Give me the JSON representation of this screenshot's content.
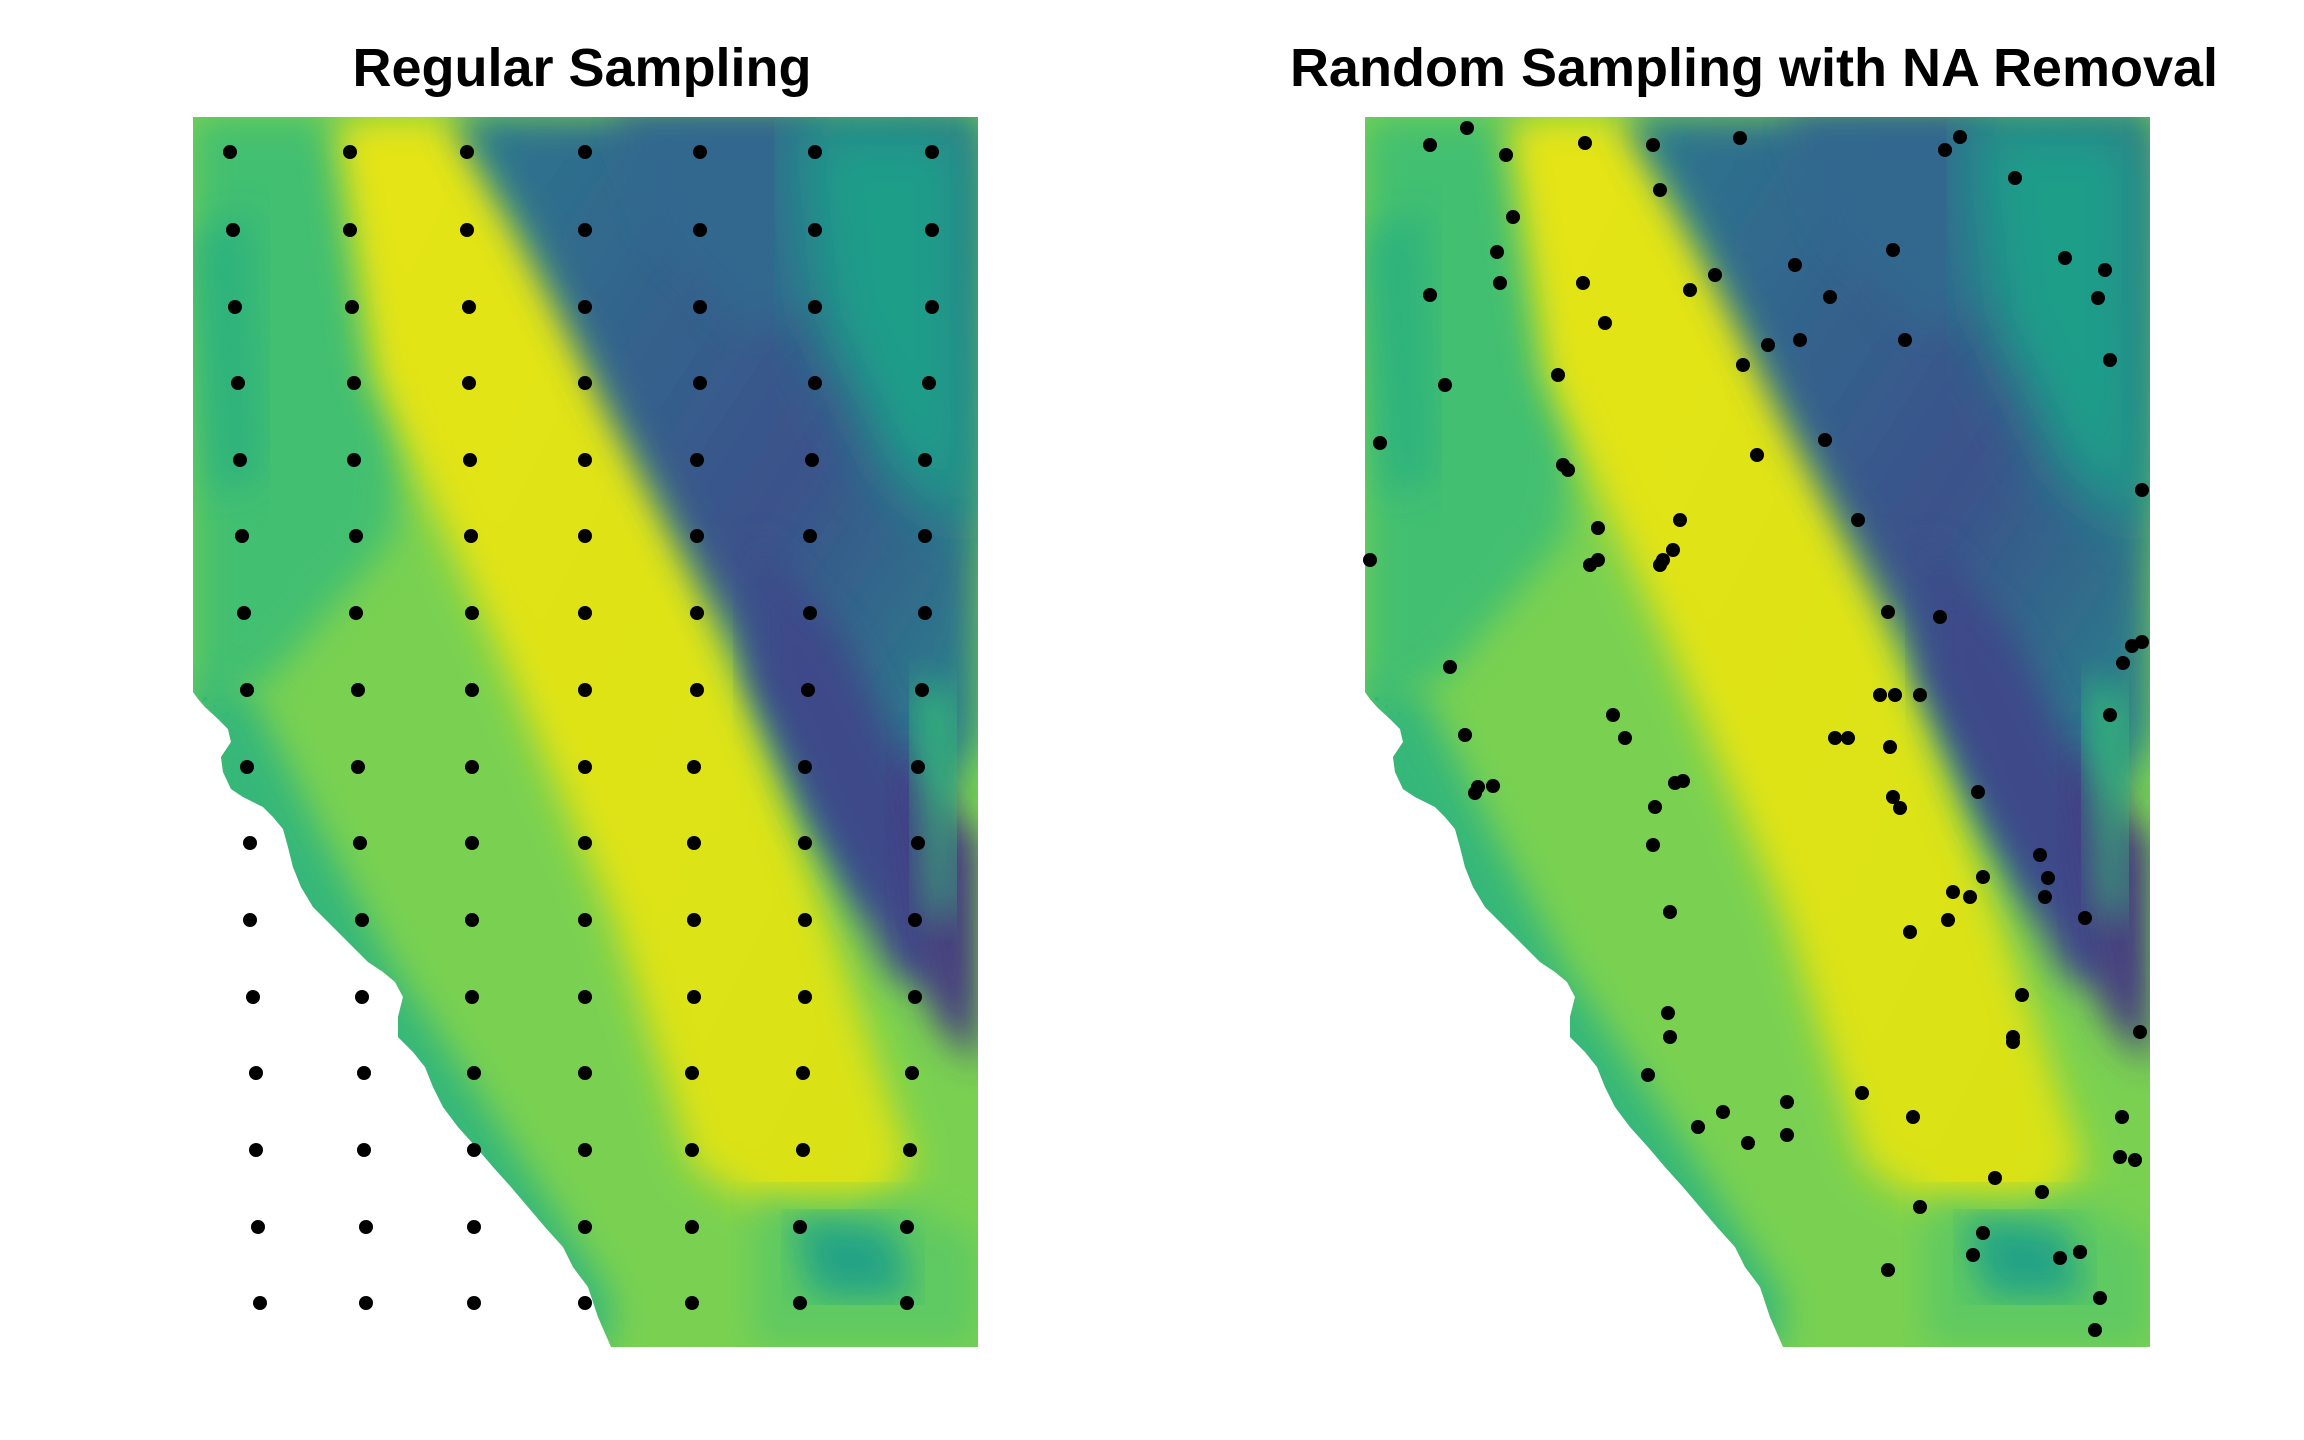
{
  "panels": [
    {
      "title": "Regular Sampling",
      "points": [
        [
          230,
          152
        ],
        [
          350,
          152
        ],
        [
          467,
          152
        ],
        [
          585,
          152
        ],
        [
          700,
          152
        ],
        [
          815,
          152
        ],
        [
          932,
          152
        ],
        [
          233,
          230
        ],
        [
          350,
          230
        ],
        [
          467,
          230
        ],
        [
          585,
          230
        ],
        [
          700,
          230
        ],
        [
          815,
          230
        ],
        [
          932,
          230
        ],
        [
          235,
          307
        ],
        [
          352,
          307
        ],
        [
          469,
          307
        ],
        [
          585,
          307
        ],
        [
          700,
          307
        ],
        [
          815,
          307
        ],
        [
          932,
          307
        ],
        [
          238,
          383
        ],
        [
          354,
          383
        ],
        [
          469,
          383
        ],
        [
          585,
          383
        ],
        [
          700,
          383
        ],
        [
          815,
          383
        ],
        [
          929,
          383
        ],
        [
          240,
          460
        ],
        [
          354,
          460
        ],
        [
          470,
          460
        ],
        [
          585,
          460
        ],
        [
          697,
          460
        ],
        [
          812,
          460
        ],
        [
          925,
          460
        ],
        [
          242,
          536
        ],
        [
          356,
          536
        ],
        [
          471,
          536
        ],
        [
          585,
          536
        ],
        [
          697,
          536
        ],
        [
          810,
          536
        ],
        [
          925,
          536
        ],
        [
          244,
          613
        ],
        [
          356,
          613
        ],
        [
          472,
          613
        ],
        [
          585,
          613
        ],
        [
          697,
          613
        ],
        [
          810,
          613
        ],
        [
          925,
          613
        ],
        [
          247,
          690
        ],
        [
          358,
          690
        ],
        [
          472,
          690
        ],
        [
          585,
          690
        ],
        [
          697,
          690
        ],
        [
          808,
          690
        ],
        [
          922,
          690
        ],
        [
          247,
          767
        ],
        [
          358,
          767
        ],
        [
          472,
          767
        ],
        [
          585,
          767
        ],
        [
          694,
          767
        ],
        [
          805,
          767
        ],
        [
          918,
          767
        ],
        [
          250,
          843
        ],
        [
          360,
          843
        ],
        [
          472,
          843
        ],
        [
          585,
          843
        ],
        [
          694,
          843
        ],
        [
          805,
          843
        ],
        [
          918,
          843
        ],
        [
          250,
          920
        ],
        [
          362,
          920
        ],
        [
          472,
          920
        ],
        [
          585,
          920
        ],
        [
          694,
          920
        ],
        [
          805,
          920
        ],
        [
          915,
          920
        ],
        [
          253,
          997
        ],
        [
          362,
          997
        ],
        [
          472,
          997
        ],
        [
          585,
          997
        ],
        [
          694,
          997
        ],
        [
          805,
          997
        ],
        [
          915,
          997
        ],
        [
          256,
          1073
        ],
        [
          364,
          1073
        ],
        [
          474,
          1073
        ],
        [
          585,
          1073
        ],
        [
          692,
          1073
        ],
        [
          803,
          1073
        ],
        [
          912,
          1073
        ],
        [
          256,
          1150
        ],
        [
          364,
          1150
        ],
        [
          474,
          1150
        ],
        [
          585,
          1150
        ],
        [
          692,
          1150
        ],
        [
          803,
          1150
        ],
        [
          910,
          1150
        ],
        [
          258,
          1227
        ],
        [
          366,
          1227
        ],
        [
          474,
          1227
        ],
        [
          585,
          1227
        ],
        [
          692,
          1227
        ],
        [
          800,
          1227
        ],
        [
          907,
          1227
        ],
        [
          260,
          1303
        ],
        [
          366,
          1303
        ],
        [
          474,
          1303
        ],
        [
          585,
          1303
        ],
        [
          692,
          1303
        ],
        [
          800,
          1303
        ],
        [
          907,
          1303
        ]
      ]
    },
    {
      "title": "Random Sampling with NA Removal",
      "points": [
        [
          1430,
          145
        ],
        [
          1467,
          128
        ],
        [
          1506,
          155
        ],
        [
          1585,
          143
        ],
        [
          1653,
          145
        ],
        [
          1740,
          138
        ],
        [
          1945,
          150
        ],
        [
          1960,
          137
        ],
        [
          1660,
          190
        ],
        [
          2015,
          178
        ],
        [
          1513,
          217
        ],
        [
          1497,
          252
        ],
        [
          1500,
          283
        ],
        [
          1583,
          283
        ],
        [
          1605,
          323
        ],
        [
          1690,
          290
        ],
        [
          1715,
          275
        ],
        [
          1795,
          265
        ],
        [
          1830,
          297
        ],
        [
          1893,
          250
        ],
        [
          1905,
          340
        ],
        [
          2065,
          258
        ],
        [
          2105,
          270
        ],
        [
          2098,
          298
        ],
        [
          1430,
          295
        ],
        [
          1445,
          385
        ],
        [
          1380,
          443
        ],
        [
          1558,
          375
        ],
        [
          1563,
          465
        ],
        [
          1568,
          470
        ],
        [
          1598,
          528
        ],
        [
          1743,
          365
        ],
        [
          1757,
          455
        ],
        [
          1768,
          345
        ],
        [
          1800,
          340
        ],
        [
          1825,
          440
        ],
        [
          2110,
          360
        ],
        [
          1370,
          560
        ],
        [
          1598,
          560
        ],
        [
          1590,
          565
        ],
        [
          1660,
          565
        ],
        [
          1663,
          560
        ],
        [
          1673,
          550
        ],
        [
          1680,
          520
        ],
        [
          1858,
          520
        ],
        [
          1888,
          612
        ],
        [
          1895,
          695
        ],
        [
          2142,
          490
        ],
        [
          2132,
          646
        ],
        [
          2123,
          663
        ],
        [
          1450,
          667
        ],
        [
          1613,
          715
        ],
        [
          1625,
          738
        ],
        [
          1848,
          738
        ],
        [
          1890,
          747
        ],
        [
          1880,
          695
        ],
        [
          1835,
          738
        ],
        [
          1893,
          797
        ],
        [
          1920,
          695
        ],
        [
          1940,
          617
        ],
        [
          1978,
          792
        ],
        [
          2040,
          855
        ],
        [
          2048,
          878
        ],
        [
          2142,
          642
        ],
        [
          2110,
          715
        ],
        [
          1465,
          735
        ],
        [
          1478,
          787
        ],
        [
          1475,
          793
        ],
        [
          1493,
          786
        ],
        [
          1655,
          807
        ],
        [
          1675,
          783
        ],
        [
          1683,
          781
        ],
        [
          1653,
          845
        ],
        [
          1900,
          808
        ],
        [
          1953,
          892
        ],
        [
          1970,
          897
        ],
        [
          1910,
          932
        ],
        [
          1983,
          877
        ],
        [
          1948,
          920
        ],
        [
          2045,
          897
        ],
        [
          2085,
          918
        ],
        [
          1670,
          912
        ],
        [
          1668,
          1013
        ],
        [
          1670,
          1037
        ],
        [
          1648,
          1075
        ],
        [
          1698,
          1127
        ],
        [
          1723,
          1112
        ],
        [
          1748,
          1143
        ],
        [
          1787,
          1102
        ],
        [
          1787,
          1135
        ],
        [
          1862,
          1093
        ],
        [
          1913,
          1117
        ],
        [
          2022,
          995
        ],
        [
          2013,
          1037
        ],
        [
          2013,
          1042
        ],
        [
          2140,
          1032
        ],
        [
          1920,
          1207
        ],
        [
          1995,
          1178
        ],
        [
          2042,
          1192
        ],
        [
          1983,
          1233
        ],
        [
          1888,
          1270
        ],
        [
          1973,
          1255
        ],
        [
          2080,
          1252
        ],
        [
          2060,
          1258
        ],
        [
          2122,
          1117
        ],
        [
          2120,
          1157
        ],
        [
          2135,
          1160
        ],
        [
          2080,
          1252
        ],
        [
          2100,
          1298
        ],
        [
          2095,
          1330
        ]
      ]
    }
  ]
}
